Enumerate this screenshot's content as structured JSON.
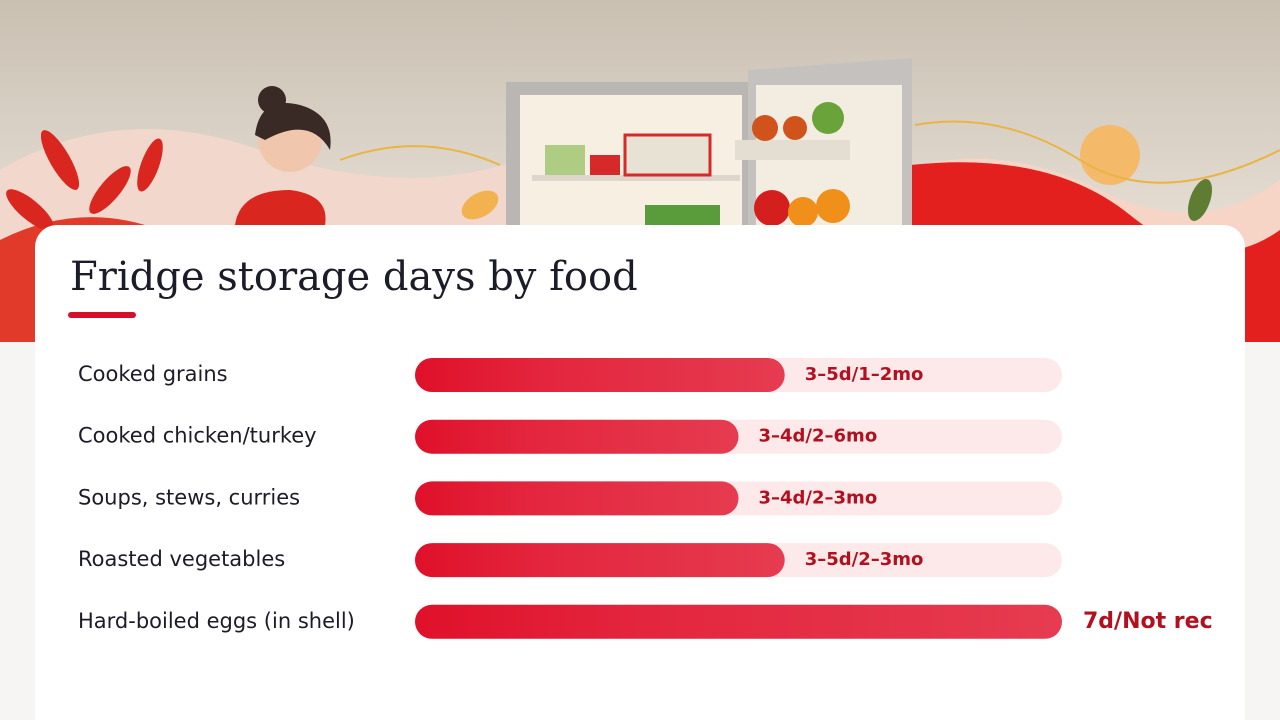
{
  "chart_data": {
    "type": "bar",
    "orientation": "horizontal",
    "title": "Fridge storage days by food",
    "categories": [
      "Cooked grains",
      "Cooked chicken/turkey",
      "Soups, stews, curries",
      "Roasted vegetables",
      "Hard-boiled eggs (in shell)"
    ],
    "values": [
      4,
      3.5,
      3.5,
      4,
      7
    ],
    "value_labels": [
      "3–5d/1–2mo",
      "3–4d/2–6mo",
      "3–4d/2–3mo",
      "3–5d/2–3mo",
      "7d/Not rec"
    ],
    "xlim": [
      0,
      7
    ],
    "color": "#e0102a"
  }
}
